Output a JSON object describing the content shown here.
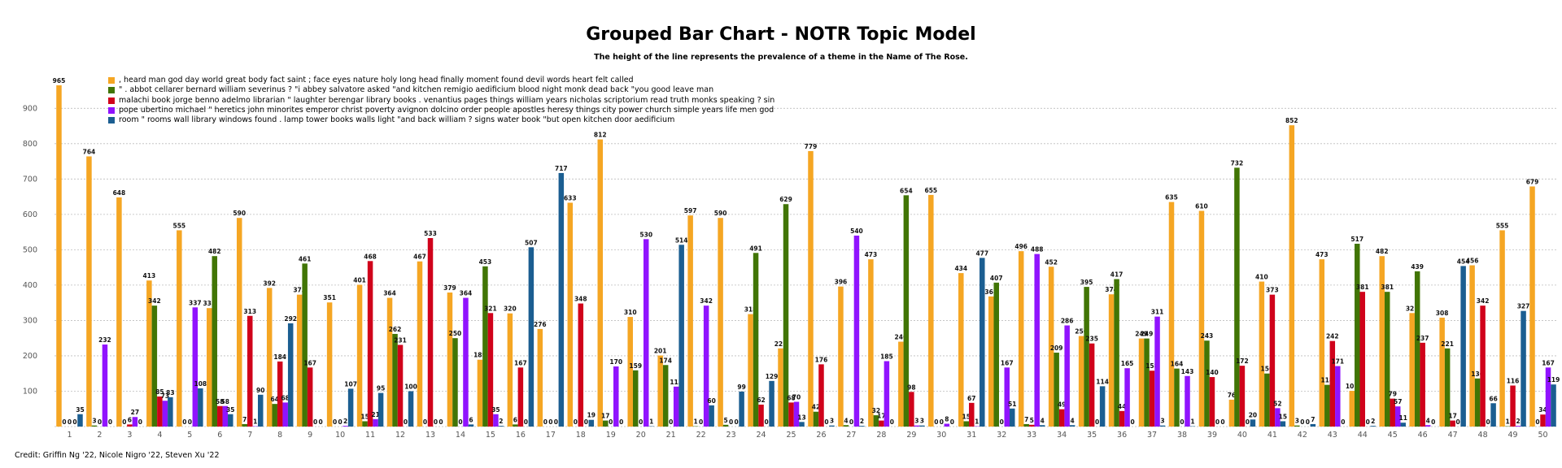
{
  "chart_data": {
    "type": "bar",
    "title": "Grouped Bar Chart - NOTR Topic Model",
    "subtitle": "The height of the line represents the prevalence of a theme in the Name of The Rose.",
    "xlabel": "",
    "ylabel": "",
    "ylim": [
      0,
      965
    ],
    "yticks": [
      100,
      200,
      300,
      400,
      500,
      600,
      700,
      800,
      900
    ],
    "grid": true,
    "legend_position": "top-left",
    "categories": [
      "1",
      "2",
      "3",
      "4",
      "5",
      "6",
      "7",
      "8",
      "9",
      "10",
      "11",
      "12",
      "13",
      "14",
      "15",
      "16",
      "17",
      "18",
      "19",
      "20",
      "21",
      "22",
      "23",
      "24",
      "25",
      "26",
      "27",
      "28",
      "29",
      "30",
      "31",
      "32",
      "33",
      "34",
      "35",
      "36",
      "37",
      "38",
      "39",
      "40",
      "41",
      "42",
      "43",
      "44",
      "45",
      "46",
      "47",
      "48",
      "49",
      "50"
    ],
    "series": [
      {
        "name": ", heard man god day world great body fact saint ; face eyes nature holy long head finally moment found devil words heart felt called",
        "color": "#F5A623",
        "values": [
          965,
          764,
          648,
          413,
          555,
          335,
          590,
          392,
          373,
          351,
          401,
          364,
          467,
          379,
          189,
          320,
          276,
          633,
          812,
          310,
          201,
          597,
          590,
          318,
          221,
          779,
          396,
          473,
          240,
          655,
          434,
          368,
          496,
          452,
          256,
          374,
          249,
          635,
          610,
          76,
          410,
          852,
          473,
          101,
          482,
          321,
          308,
          456,
          555,
          679
        ]
      },
      {
        "name": "\" . abbot cellarer bernard william severinus ? \"i abbey salvatore asked \"and kitchen remigio aedificium blood night monk dead back \"you good leave man",
        "color": "#417505",
        "values": [
          0,
          3,
          0,
          342,
          0,
          482,
          7,
          64,
          461,
          0,
          15,
          262,
          0,
          250,
          453,
          6,
          0,
          0,
          17,
          159,
          174,
          1,
          5,
          491,
          629,
          42,
          4,
          32,
          654,
          0,
          15,
          407,
          7,
          209,
          395,
          417,
          249,
          164,
          243,
          732,
          150,
          3,
          118,
          517,
          381,
          439,
          221,
          136,
          1,
          0
        ]
      },
      {
        "name": "malachi book jorge benno adelmo librarian \" laughter berengar library books . venantius pages things william years nicholas scriptorium read truth monks speaking ? sin",
        "color": "#D0021B",
        "values": [
          0,
          0,
          6,
          85,
          0,
          58,
          313,
          184,
          167,
          0,
          468,
          231,
          533,
          0,
          321,
          167,
          0,
          348,
          0,
          0,
          0,
          0,
          0,
          62,
          68,
          176,
          0,
          17,
          98,
          0,
          67,
          0,
          5,
          49,
          235,
          44,
          158,
          0,
          140,
          172,
          373,
          0,
          242,
          381,
          79,
          237,
          17,
          342,
          116,
          34
        ]
      },
      {
        "name": "pope ubertino michael \" heretics john minorites emperor christ poverty avignon dolcino order people apostles heresy things city power church simple years life men god",
        "color": "#9013FE",
        "values": [
          0,
          232,
          27,
          73,
          337,
          58,
          1,
          68,
          0,
          2,
          21,
          0,
          0,
          364,
          35,
          0,
          0,
          0,
          170,
          530,
          113,
          342,
          0,
          0,
          70,
          0,
          540,
          185,
          3,
          8,
          1,
          167,
          488,
          286,
          0,
          165,
          311,
          143,
          0,
          0,
          52,
          0,
          171,
          0,
          57,
          4,
          0,
          0,
          2,
          167
        ]
      },
      {
        "name": "room \" rooms wall library windows found . lamp tower books walls light \"and back william ? signs water book \"but open kitchen door aedificium",
        "color": "#1B5E91",
        "values": [
          35,
          0,
          0,
          83,
          108,
          35,
          90,
          292,
          0,
          107,
          95,
          100,
          0,
          6,
          2,
          507,
          717,
          19,
          0,
          1,
          514,
          60,
          99,
          129,
          13,
          3,
          2,
          0,
          3,
          0,
          477,
          51,
          4,
          4,
          114,
          0,
          3,
          1,
          0,
          20,
          15,
          7,
          0,
          2,
          11,
          0,
          454,
          66,
          327,
          119
        ]
      }
    ]
  }
}
